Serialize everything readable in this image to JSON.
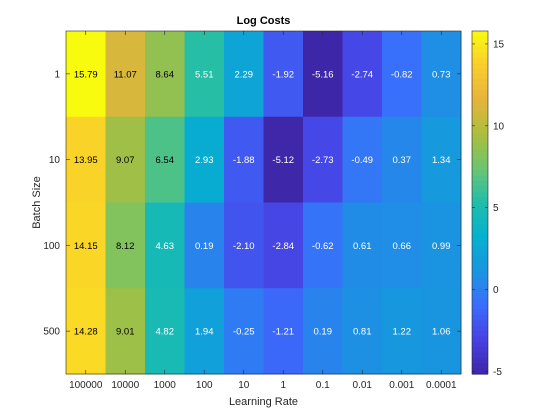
{
  "chart_data": {
    "type": "heatmap",
    "title": "Log Costs",
    "xlabel": "Learning Rate",
    "ylabel": "Batch Size",
    "x_categories": [
      "100000",
      "10000",
      "1000",
      "100",
      "10",
      "1",
      "0.1",
      "0.01",
      "0.001",
      "0.0001"
    ],
    "y_categories": [
      "1",
      "10",
      "100",
      "500"
    ],
    "values": [
      [
        15.79,
        11.07,
        8.64,
        5.51,
        2.29,
        -1.92,
        -5.16,
        -2.74,
        -0.82,
        0.73
      ],
      [
        13.95,
        9.07,
        6.54,
        2.93,
        -1.88,
        -5.12,
        -2.73,
        -0.49,
        0.37,
        1.34
      ],
      [
        14.15,
        8.12,
        4.63,
        0.19,
        -2.1,
        -2.84,
        -0.62,
        0.61,
        0.66,
        0.99
      ],
      [
        14.28,
        9.01,
        4.82,
        1.94,
        -0.25,
        -1.21,
        0.19,
        0.81,
        1.22,
        1.06
      ]
    ],
    "value_labels": [
      [
        "15.79",
        "11.07",
        "8.64",
        "5.51",
        "2.29",
        "-1.92",
        "-5.16",
        "-2.74",
        "-0.82",
        "0.73"
      ],
      [
        "13.95",
        "9.07",
        "6.54",
        "2.93",
        "-1.88",
        "-5.12",
        "-2.73",
        "-0.49",
        "0.37",
        "1.34"
      ],
      [
        "14.15",
        "8.12",
        "4.63",
        "0.19",
        "-2.10",
        "-2.84",
        "-0.62",
        "0.61",
        "0.66",
        "0.99"
      ],
      [
        "14.28",
        "9.01",
        "4.82",
        "1.94",
        "-0.25",
        "-1.21",
        "0.19",
        "0.81",
        "1.22",
        "1.06"
      ]
    ],
    "colormap": "parula",
    "color_range": [
      -5.16,
      15.79
    ],
    "colorbar_ticks": [
      -5,
      0,
      5,
      10,
      15
    ],
    "colorbar_tick_labels": [
      "-5",
      "0",
      "5",
      "10",
      "15"
    ],
    "colorbar_position": "right",
    "grid": false
  }
}
